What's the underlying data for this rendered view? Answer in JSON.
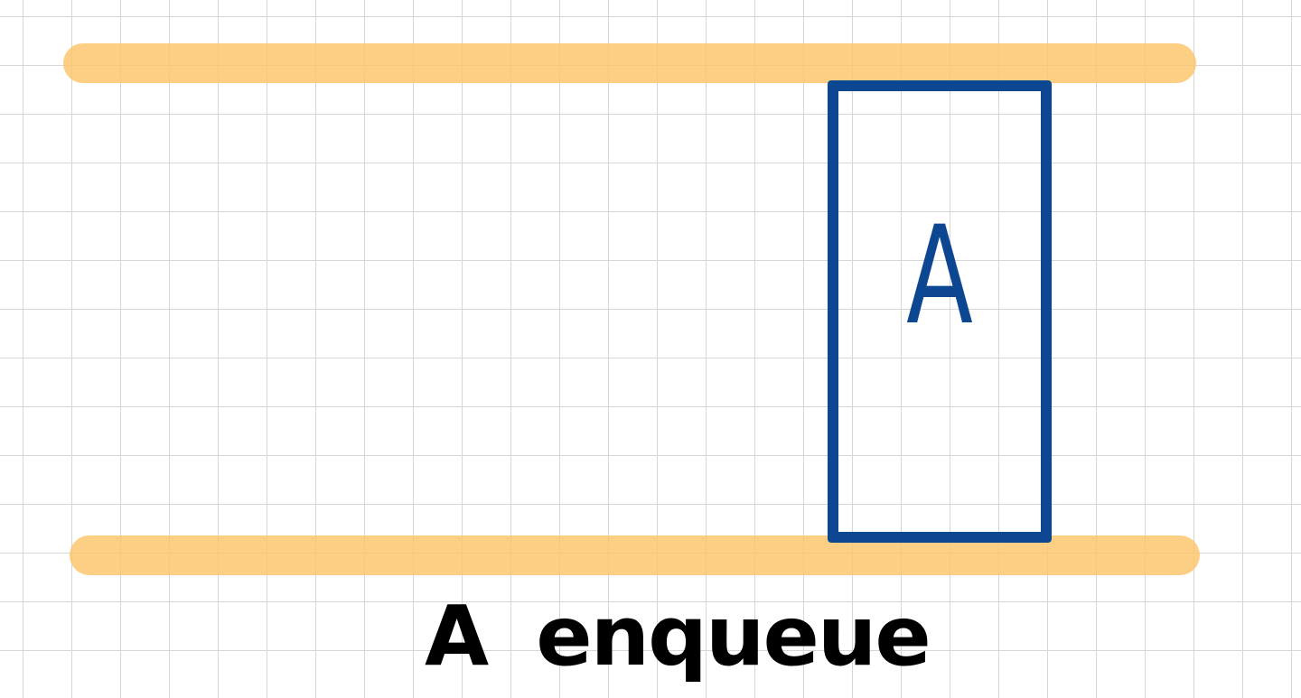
{
  "diagram": {
    "box_label": "A",
    "caption_letter": "A",
    "caption_action": "enqueue"
  },
  "colors": {
    "rail": "#fcc46a",
    "box_stroke": "#0e4791",
    "caption_text": "#000000",
    "grid_line": "#d6d6d6"
  }
}
